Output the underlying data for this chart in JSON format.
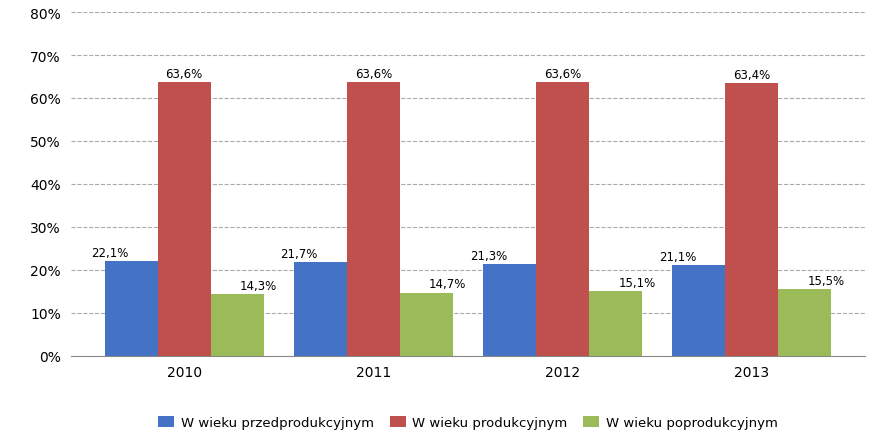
{
  "years": [
    "2010",
    "2011",
    "2012",
    "2013"
  ],
  "series": [
    {
      "name": "W wieku przedprodukcyjnym",
      "values": [
        22.1,
        21.7,
        21.3,
        21.1
      ],
      "color": "#4472C4"
    },
    {
      "name": "W wieku produkcyjnym",
      "values": [
        63.6,
        63.6,
        63.6,
        63.4
      ],
      "color": "#C0504D"
    },
    {
      "name": "W wieku poprodukcyjnym",
      "values": [
        14.3,
        14.7,
        15.1,
        15.5
      ],
      "color": "#9BBB59"
    }
  ],
  "ylim": [
    0,
    80
  ],
  "yticks": [
    0,
    10,
    20,
    30,
    40,
    50,
    60,
    70,
    80
  ],
  "bar_width": 0.28,
  "background_color": "#FFFFFF",
  "grid_color": "#AAAAAA",
  "label_fontsize": 8.5,
  "tick_fontsize": 10,
  "legend_fontsize": 9.5
}
